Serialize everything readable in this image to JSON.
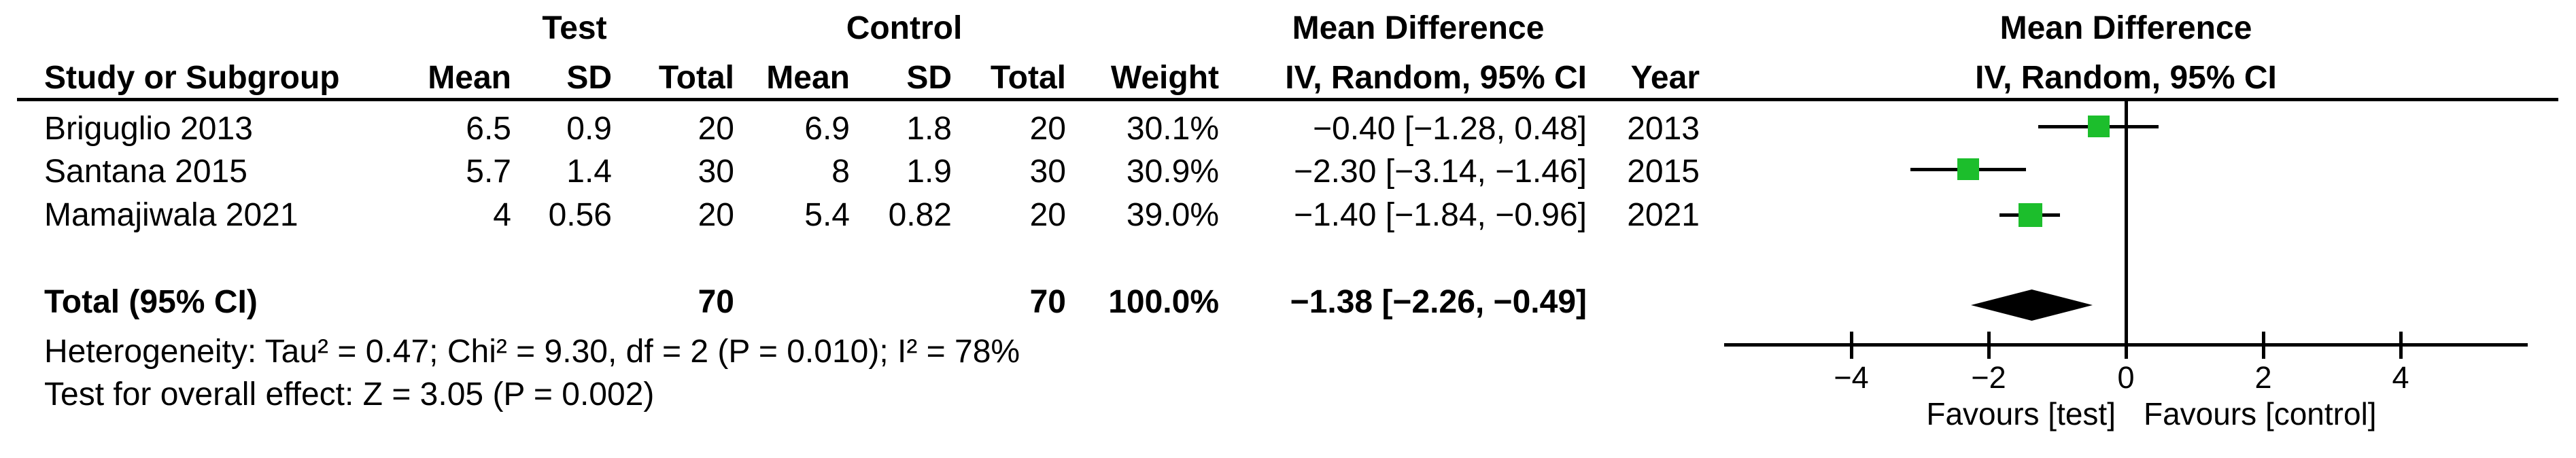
{
  "figure": {
    "group_headers": {
      "test": "Test",
      "control": "Control",
      "md_table_line1": "Mean Difference",
      "md_plot_line1": "Mean Difference"
    },
    "columns": {
      "study": "Study or Subgroup",
      "test_mean": "Mean",
      "test_sd": "SD",
      "test_total": "Total",
      "control_mean": "Mean",
      "control_sd": "SD",
      "control_total": "Total",
      "weight": "Weight",
      "md_ci": "IV, Random, 95% CI",
      "year": "Year",
      "md_ci_plot": "IV, Random, 95% CI"
    },
    "rows": [
      {
        "study": "Briguglio 2013",
        "test_mean": "6.5",
        "test_sd": "0.9",
        "test_total": "20",
        "control_mean": "6.9",
        "control_sd": "1.8",
        "control_total": "20",
        "weight": "30.1%",
        "md_ci": "−0.40 [−1.28, 0.48]",
        "year": "2013"
      },
      {
        "study": "Santana 2015",
        "test_mean": "5.7",
        "test_sd": "1.4",
        "test_total": "30",
        "control_mean": "8",
        "control_sd": "1.9",
        "control_total": "30",
        "weight": "30.9%",
        "md_ci": "−2.30 [−3.14, −1.46]",
        "year": "2015"
      },
      {
        "study": "Mamajiwala 2021",
        "test_mean": "4",
        "test_sd": "0.56",
        "test_total": "20",
        "control_mean": "5.4",
        "control_sd": "0.82",
        "control_total": "20",
        "weight": "39.0%",
        "md_ci": "−1.40 [−1.84, −0.96]",
        "year": "2021"
      }
    ],
    "total_row": {
      "label": "Total (95% CI)",
      "test_total": "70",
      "control_total": "70",
      "weight": "100.0%",
      "md_ci": "−1.38 [−2.26, −0.49]"
    },
    "footer": {
      "heterogeneity": "Heterogeneity: Tau² = 0.47; Chi² = 9.30, df = 2 (P = 0.010); I² = 78%",
      "overall_effect": "Test for overall effect: Z = 3.05 (P = 0.002)"
    },
    "plot_labels": {
      "favours_left": "Favours [test]",
      "favours_right": "Favours [control]"
    }
  },
  "chart_data": {
    "type": "scatter",
    "subtype": "forest-plot-mean-difference",
    "title": "Mean Difference",
    "subtitle": "IV, Random, 95% CI",
    "x_ticks": [
      -4,
      -2,
      0,
      2,
      4
    ],
    "xlim": [
      -5.85,
      5.85
    ],
    "x_axis_note_left": "Favours [test]",
    "x_axis_note_right": "Favours [control]",
    "grid": false,
    "studies": [
      {
        "name": "Briguglio 2013",
        "year": 2013,
        "md": -0.4,
        "ci_low": -1.28,
        "ci_high": 0.48,
        "weight_pct": 30.1
      },
      {
        "name": "Santana 2015",
        "year": 2015,
        "md": -2.3,
        "ci_low": -3.14,
        "ci_high": -1.46,
        "weight_pct": 30.9
      },
      {
        "name": "Mamajiwala 2021",
        "year": 2021,
        "md": -1.4,
        "ci_low": -1.84,
        "ci_high": -0.96,
        "weight_pct": 39.0
      }
    ],
    "total": {
      "label": "Total (95% CI)",
      "md": -1.38,
      "ci_low": -2.26,
      "ci_high": -0.49,
      "weight_pct": 100.0
    },
    "heterogeneity": {
      "tau2": 0.47,
      "chi2": 9.3,
      "df": 2,
      "p": 0.01,
      "i2_pct": 78
    },
    "overall_effect": {
      "z": 3.05,
      "p": 0.002
    }
  },
  "colors": {
    "marker_green": "#1CBE2C",
    "diamond_black": "#000000",
    "line_black": "#000000",
    "background": "#FFFFFF"
  }
}
